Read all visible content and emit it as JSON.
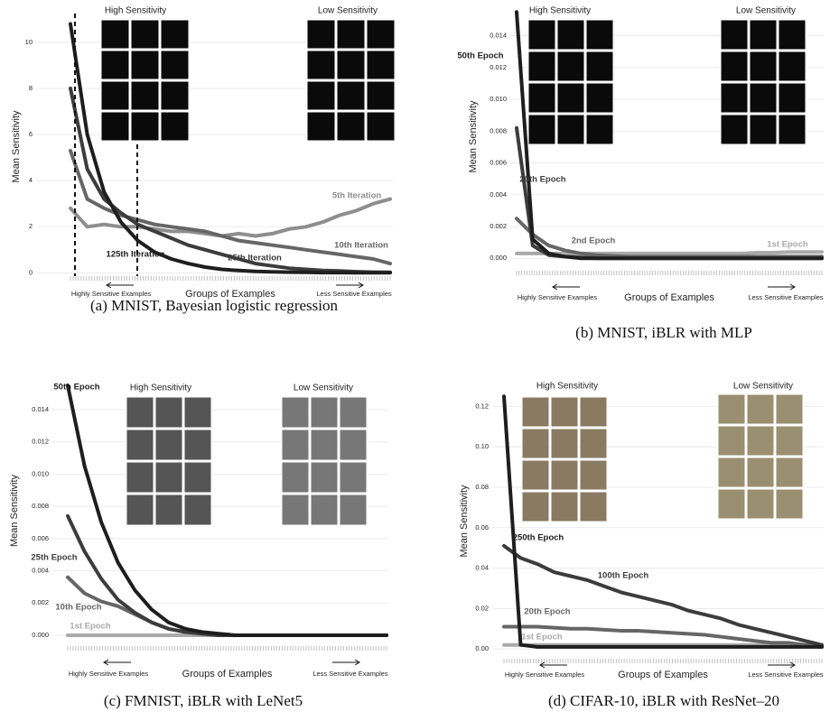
{
  "chart_data": [
    {
      "type": "line",
      "y_label": "Mean Sensitivity",
      "x_label": "Groups of Examples",
      "x_left_label": "Highly Sensitive Examples",
      "x_right_label": "Less Sensitive Examples",
      "caption": "(a) MNIST, Bayesian logistic regression",
      "image_titles": [
        "High Sensitivity",
        "Low Sensitivity"
      ],
      "categories": [
        null,
        null,
        null,
        null,
        null,
        null,
        null,
        null,
        null,
        null,
        null,
        null,
        null,
        null,
        null,
        null,
        null,
        null,
        null,
        null
      ],
      "series": [
        {
          "name": "125th Iteration",
          "color": "#1e1e1e",
          "values": [
            10.8,
            6,
            3.5,
            2.2,
            1.4,
            0.9,
            0.6,
            0.4,
            0.25,
            0.15,
            0.1,
            0.06,
            0.04,
            0.03,
            0.02,
            0.01,
            0.01,
            0,
            0,
            0
          ]
        },
        {
          "name": "25th Iteration",
          "color": "#3c3c3c",
          "values": [
            8,
            4.5,
            3.2,
            2.6,
            2.1,
            1.8,
            1.5,
            1.2,
            1.0,
            0.8,
            0.6,
            0.4,
            0.3,
            0.2,
            0.15,
            0.1,
            0.08,
            0.05,
            0.03,
            0.02
          ]
        },
        {
          "name": "10th Iteration",
          "color": "#666666",
          "values": [
            5.3,
            3.2,
            2.8,
            2.5,
            2.3,
            2.1,
            2.0,
            1.9,
            1.8,
            1.6,
            1.4,
            1.3,
            1.2,
            1.1,
            1.0,
            0.9,
            0.8,
            0.7,
            0.6,
            0.4
          ]
        },
        {
          "name": "5th Iteration",
          "color": "#8e8e8e",
          "values": [
            2.8,
            2.0,
            2.1,
            2.0,
            2.0,
            1.9,
            1.8,
            1.8,
            1.7,
            1.6,
            1.7,
            1.6,
            1.7,
            1.9,
            2.0,
            2.2,
            2.5,
            2.7,
            3.0,
            3.2
          ]
        }
      ],
      "ylim": [
        -0.3,
        11.25
      ],
      "yticks": [
        0,
        2,
        4,
        6,
        8,
        10
      ],
      "grid": true
    },
    {
      "type": "line",
      "y_label": "Mean Sensitivity",
      "x_label": "Groups of Examples",
      "x_left_label": "Highly Sensitive Examples",
      "x_right_label": "Less Sensitive Examples",
      "caption": "(b) MNIST, iBLR with MLP",
      "image_titles": [
        "High Sensitivity",
        "Low Sensitivity"
      ],
      "categories": [
        null,
        null,
        null,
        null,
        null,
        null,
        null,
        null,
        null,
        null,
        null,
        null,
        null,
        null,
        null,
        null,
        null,
        null,
        null,
        null
      ],
      "series": [
        {
          "name": "50th Epoch",
          "color": "#1e1e1e",
          "values": [
            0.0155,
            0.0012,
            0.0003,
            0.0001,
            0,
            0,
            0,
            0,
            0,
            0,
            0,
            0,
            0,
            0,
            0,
            0,
            0,
            0,
            0,
            0
          ]
        },
        {
          "name": "20th Epoch",
          "color": "#3c3c3c",
          "values": [
            0.0082,
            0.0008,
            0.0002,
            0.0001,
            5e-05,
            0,
            0,
            0,
            0,
            0,
            0,
            0,
            0,
            0,
            0,
            0,
            0,
            0,
            0,
            0
          ]
        },
        {
          "name": "2nd Epoch",
          "color": "#666666",
          "values": [
            0.0025,
            0.0015,
            0.0008,
            0.0005,
            0.0003,
            0.0002,
            0.00015,
            0.0001,
            0.0001,
            0.0001,
            0.0001,
            0.0001,
            0.0001,
            0.0001,
            0.0001,
            0.0001,
            0.0001,
            0.0001,
            0.0001,
            0.0001
          ]
        },
        {
          "name": "1st Epoch",
          "color": "#aaaaaa",
          "values": [
            0.0003,
            0.0003,
            0.0003,
            0.0003,
            0.0003,
            0.0003,
            0.0003,
            0.0003,
            0.0003,
            0.0003,
            0.0003,
            0.0003,
            0.0003,
            0.0003,
            0.0003,
            0.00035,
            0.00035,
            0.0004,
            0.0004,
            0.0004
          ]
        }
      ],
      "ylim": [
        -0.0005,
        0.0158
      ],
      "yticks": [
        {
          "value": 0,
          "label": "0.000"
        },
        {
          "value": 0.002,
          "label": "0.002"
        },
        {
          "value": 0.004,
          "label": "0.004"
        },
        {
          "value": 0.006,
          "label": "0.006"
        },
        {
          "value": 0.008,
          "label": "0.008"
        },
        {
          "value": 0.01,
          "label": "0.010"
        },
        {
          "value": 0.012,
          "label": "0.012"
        },
        {
          "value": 0.014,
          "label": "0.014"
        }
      ],
      "grid": true
    },
    {
      "type": "line",
      "y_label": "Mean Sensitivity",
      "x_label": "Groups of Examples",
      "x_left_label": "Highly Sensitive Examples",
      "x_right_label": "Less Sensitive Examples",
      "caption": "(c) FMNIST, iBLR with LeNet5",
      "image_titles": [
        "High Sensitivity",
        "Low Sensitivity"
      ],
      "categories": [
        null,
        null,
        null,
        null,
        null,
        null,
        null,
        null,
        null,
        null,
        null,
        null,
        null,
        null,
        null,
        null,
        null,
        null,
        null,
        null
      ],
      "series": [
        {
          "name": "50th Epoch",
          "color": "#1e1e1e",
          "values": [
            0.0155,
            0.0105,
            0.007,
            0.0045,
            0.0028,
            0.0016,
            0.0008,
            0.0004,
            0.0002,
            0.0001,
            0,
            0,
            0,
            0,
            0,
            0,
            0,
            0,
            0,
            0
          ]
        },
        {
          "name": "25th Epoch",
          "color": "#3c3c3c",
          "values": [
            0.0074,
            0.0052,
            0.0035,
            0.0022,
            0.0014,
            0.0008,
            0.0004,
            0.0002,
            0.0001,
            0,
            0,
            0,
            0,
            0,
            0,
            0,
            0,
            0,
            0,
            0
          ]
        },
        {
          "name": "10th Epoch",
          "color": "#666666",
          "values": [
            0.0036,
            0.0026,
            0.0021,
            0.0018,
            0.0013,
            0.0008,
            0.0004,
            0.0002,
            0.0001,
            0,
            0,
            0,
            0,
            0,
            0,
            0,
            0,
            0,
            0,
            0
          ]
        },
        {
          "name": "1st Epoch",
          "color": "#aaaaaa",
          "values": [
            0,
            0,
            0,
            0,
            0,
            0,
            0,
            0,
            0,
            0,
            0,
            0,
            0,
            0,
            0,
            0,
            0,
            0,
            0,
            0
          ]
        }
      ],
      "ylim": [
        -0.00045,
        0.0159
      ],
      "yticks": [
        {
          "value": 0,
          "label": "0.000"
        },
        {
          "value": 0.002,
          "label": "0.002"
        },
        {
          "value": 0.004,
          "label": "0.004"
        },
        {
          "value": 0.006,
          "label": "0.006"
        },
        {
          "value": 0.008,
          "label": "0.008"
        },
        {
          "value": 0.01,
          "label": "0.010"
        },
        {
          "value": 0.012,
          "label": "0.012"
        },
        {
          "value": 0.014,
          "label": "0.014"
        }
      ],
      "grid": true
    },
    {
      "type": "line",
      "y_label": "Mean Sensitivity",
      "x_label": "Groups of Examples",
      "x_left_label": "Highly Sensitive Examples",
      "x_right_label": "Less Sensitive Examples",
      "caption": "(d) CIFAR-10, iBLR with ResNet–20",
      "image_titles": [
        "High Sensitivity",
        "Low Sensitivity"
      ],
      "categories": [
        null,
        null,
        null,
        null,
        null,
        null,
        null,
        null,
        null,
        null,
        null,
        null,
        null,
        null,
        null,
        null,
        null,
        null,
        null,
        null
      ],
      "series": [
        {
          "name": "250th Epoch",
          "color": "#1e1e1e",
          "values": [
            0.125,
            0.002,
            0.001,
            0.001,
            0.001,
            0.001,
            0.001,
            0.001,
            0.001,
            0.001,
            0.001,
            0.001,
            0.001,
            0.001,
            0.001,
            0.001,
            0.001,
            0.001,
            0.001,
            0.001
          ]
        },
        {
          "name": "100th Epoch",
          "color": "#3c3c3c",
          "values": [
            0.051,
            0.045,
            0.042,
            0.038,
            0.036,
            0.034,
            0.031,
            0.028,
            0.026,
            0.024,
            0.022,
            0.019,
            0.017,
            0.015,
            0.012,
            0.01,
            0.008,
            0.006,
            0.004,
            0.002
          ]
        },
        {
          "name": "20th Epoch",
          "color": "#666666",
          "values": [
            0.011,
            0.011,
            0.011,
            0.0105,
            0.01,
            0.01,
            0.0095,
            0.009,
            0.009,
            0.0085,
            0.008,
            0.0075,
            0.007,
            0.006,
            0.005,
            0.004,
            0.003,
            0.003,
            0.002,
            0.001
          ]
        },
        {
          "name": "1st Epoch",
          "color": "#aaaaaa",
          "values": [
            0.002,
            0.002,
            0.002,
            0.002,
            0.002,
            0.002,
            0.002,
            0.002,
            0.002,
            0.002,
            0.002,
            0.002,
            0.002,
            0.002,
            0.002,
            0.002,
            0.002,
            0.002,
            0.002,
            0.002
          ]
        }
      ],
      "ylim": [
        -0.0035,
        0.13
      ],
      "yticks": [
        {
          "value": 0,
          "label": "0.00"
        },
        {
          "value": 0.02,
          "label": "0.02"
        },
        {
          "value": 0.04,
          "label": "0.04"
        },
        {
          "value": 0.06,
          "label": "0.06"
        },
        {
          "value": 0.08,
          "label": "0.08"
        },
        {
          "value": 0.1,
          "label": "0.10"
        },
        {
          "value": 0.12,
          "label": "0.12"
        }
      ],
      "grid": true
    }
  ]
}
